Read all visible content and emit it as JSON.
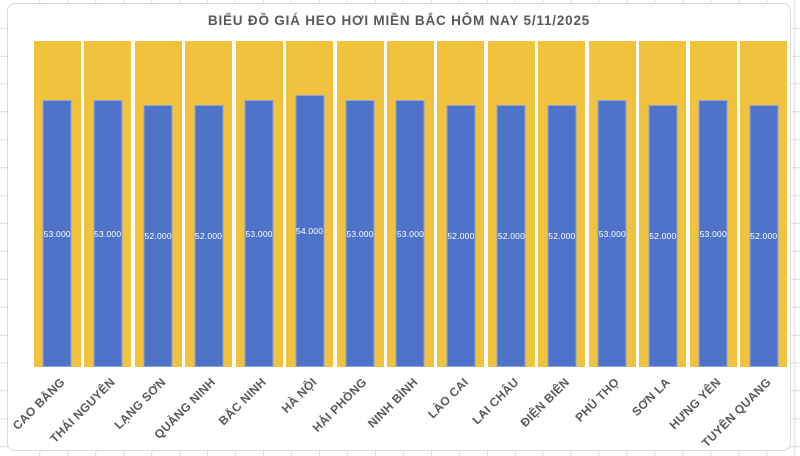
{
  "page": {
    "background_color": "#ffffff",
    "gridline_color": "#d9d9d9"
  },
  "chart_data": {
    "type": "bar",
    "title": "BIỂU ĐỒ GIÁ HEO HƠI MIỀN BẮC HÔM NAY 5/11/2025",
    "categories": [
      "CAO BẰNG",
      "THÁI NGUYÊN",
      "LẠNG SƠN",
      "QUẢNG NINH",
      "BẮC NINH",
      "HÀ NỘI",
      "HẢI PHÒNG",
      "NINH BÌNH",
      "LÀO CAI",
      "LAI CHÂU",
      "ĐIỆN BIÊN",
      "PHÚ THỌ",
      "SƠN LA",
      "HƯNG YÊN",
      "TUYÊN QUANG"
    ],
    "values": [
      53000,
      53000,
      52000,
      52000,
      53000,
      54000,
      53000,
      53000,
      52000,
      52000,
      52000,
      53000,
      52000,
      53000,
      52000
    ],
    "data_labels": [
      "53.000",
      "53.000",
      "52.000",
      "52.000",
      "53.000",
      "54.000",
      "53.000",
      "53.000",
      "52.000",
      "52.000",
      "52.000",
      "53.000",
      "52.000",
      "53.000",
      "52.000"
    ],
    "xlabel": "",
    "ylabel": "",
    "y_axis": "hidden",
    "gridlines": "off",
    "legend": "none",
    "data_label_position": "center",
    "data_label_color": "#ffffff",
    "bar_color": "#4e73c8",
    "background_column_color": "#f0c23d",
    "title_color": "#595959",
    "axis_label_color": "#595959",
    "axis_label_rotation_deg": 45
  }
}
